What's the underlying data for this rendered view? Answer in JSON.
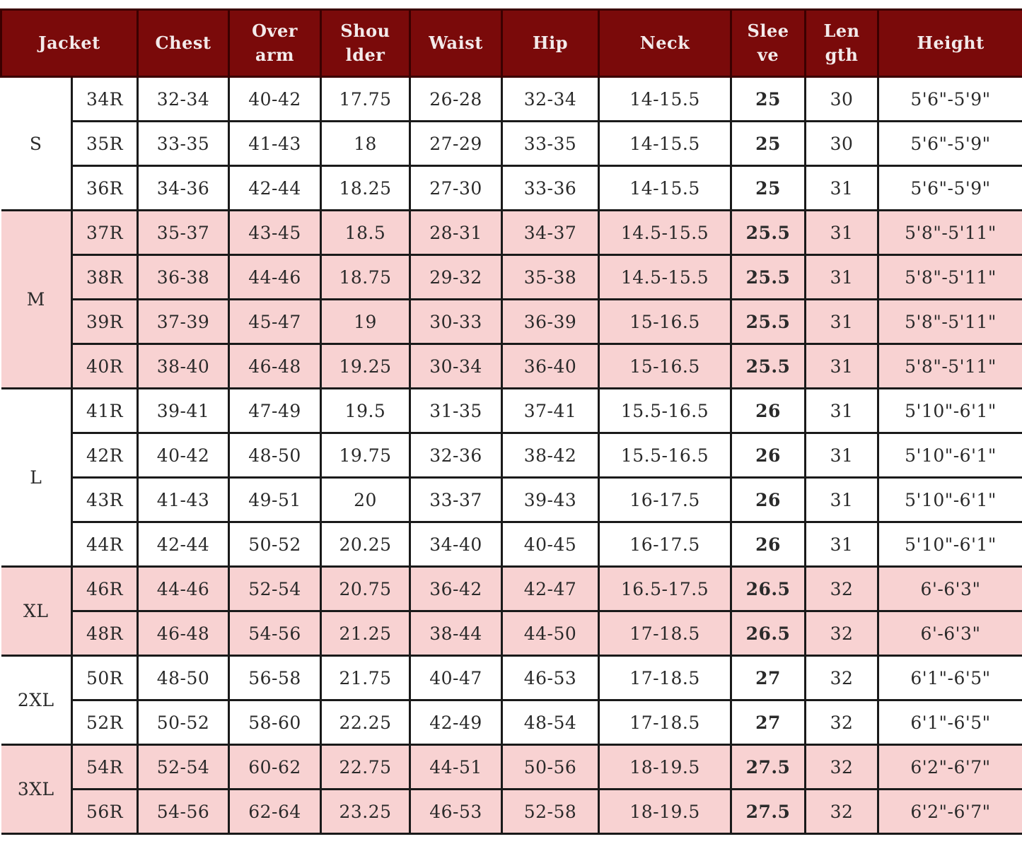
{
  "colors": {
    "header_bg": "#7a0a0a",
    "header_text": "#f3eaea",
    "pink_row": "#f8d2d2",
    "white_row": "#ffffff"
  },
  "headers": [
    "Jacket",
    "Chest",
    "Over\narm",
    "Shou\nlder",
    "Waist",
    "Hip",
    "Neck",
    "Slee\nve",
    "Len\ngth",
    "Height"
  ],
  "groups": [
    {
      "size": "S",
      "shade": "white",
      "rows": [
        [
          "34R",
          "32-34",
          "40-42",
          "17.75",
          "26-28",
          "32-34",
          "14-15.5",
          "25",
          "30",
          "5'6\"-5'9\""
        ],
        [
          "35R",
          "33-35",
          "41-43",
          "18",
          "27-29",
          "33-35",
          "14-15.5",
          "25",
          "30",
          "5'6\"-5'9\""
        ],
        [
          "36R",
          "34-36",
          "42-44",
          "18.25",
          "27-30",
          "33-36",
          "14-15.5",
          "25",
          "31",
          "5'6\"-5'9\""
        ]
      ]
    },
    {
      "size": "M",
      "shade": "pink",
      "rows": [
        [
          "37R",
          "35-37",
          "43-45",
          "18.5",
          "28-31",
          "34-37",
          "14.5-15.5",
          "25.5",
          "31",
          "5'8\"-5'11\""
        ],
        [
          "38R",
          "36-38",
          "44-46",
          "18.75",
          "29-32",
          "35-38",
          "14.5-15.5",
          "25.5",
          "31",
          "5'8\"-5'11\""
        ],
        [
          "39R",
          "37-39",
          "45-47",
          "19",
          "30-33",
          "36-39",
          "15-16.5",
          "25.5",
          "31",
          "5'8\"-5'11\""
        ],
        [
          "40R",
          "38-40",
          "46-48",
          "19.25",
          "30-34",
          "36-40",
          "15-16.5",
          "25.5",
          "31",
          "5'8\"-5'11\""
        ]
      ]
    },
    {
      "size": "L",
      "shade": "white",
      "rows": [
        [
          "41R",
          "39-41",
          "47-49",
          "19.5",
          "31-35",
          "37-41",
          "15.5-16.5",
          "26",
          "31",
          "5'10\"-6'1\""
        ],
        [
          "42R",
          "40-42",
          "48-50",
          "19.75",
          "32-36",
          "38-42",
          "15.5-16.5",
          "26",
          "31",
          "5'10\"-6'1\""
        ],
        [
          "43R",
          "41-43",
          "49-51",
          "20",
          "33-37",
          "39-43",
          "16-17.5",
          "26",
          "31",
          "5'10\"-6'1\""
        ],
        [
          "44R",
          "42-44",
          "50-52",
          "20.25",
          "34-40",
          "40-45",
          "16-17.5",
          "26",
          "31",
          "5'10\"-6'1\""
        ]
      ]
    },
    {
      "size": "XL",
      "shade": "pink",
      "rows": [
        [
          "46R",
          "44-46",
          "52-54",
          "20.75",
          "36-42",
          "42-47",
          "16.5-17.5",
          "26.5",
          "32",
          "6'-6'3\""
        ],
        [
          "48R",
          "46-48",
          "54-56",
          "21.25",
          "38-44",
          "44-50",
          "17-18.5",
          "26.5",
          "32",
          "6'-6'3\""
        ]
      ]
    },
    {
      "size": "2XL",
      "shade": "white",
      "rows": [
        [
          "50R",
          "48-50",
          "56-58",
          "21.75",
          "40-47",
          "46-53",
          "17-18.5",
          "27",
          "32",
          "6'1\"-6'5\""
        ],
        [
          "52R",
          "50-52",
          "58-60",
          "22.25",
          "42-49",
          "48-54",
          "17-18.5",
          "27",
          "32",
          "6'1\"-6'5\""
        ]
      ]
    },
    {
      "size": "3XL",
      "shade": "pink",
      "rows": [
        [
          "54R",
          "52-54",
          "60-62",
          "22.75",
          "44-51",
          "50-56",
          "18-19.5",
          "27.5",
          "32",
          "6'2\"-6'7\""
        ],
        [
          "56R",
          "54-56",
          "62-64",
          "23.25",
          "46-53",
          "52-58",
          "18-19.5",
          "27.5",
          "32",
          "6'2\"-6'7\""
        ]
      ]
    }
  ]
}
